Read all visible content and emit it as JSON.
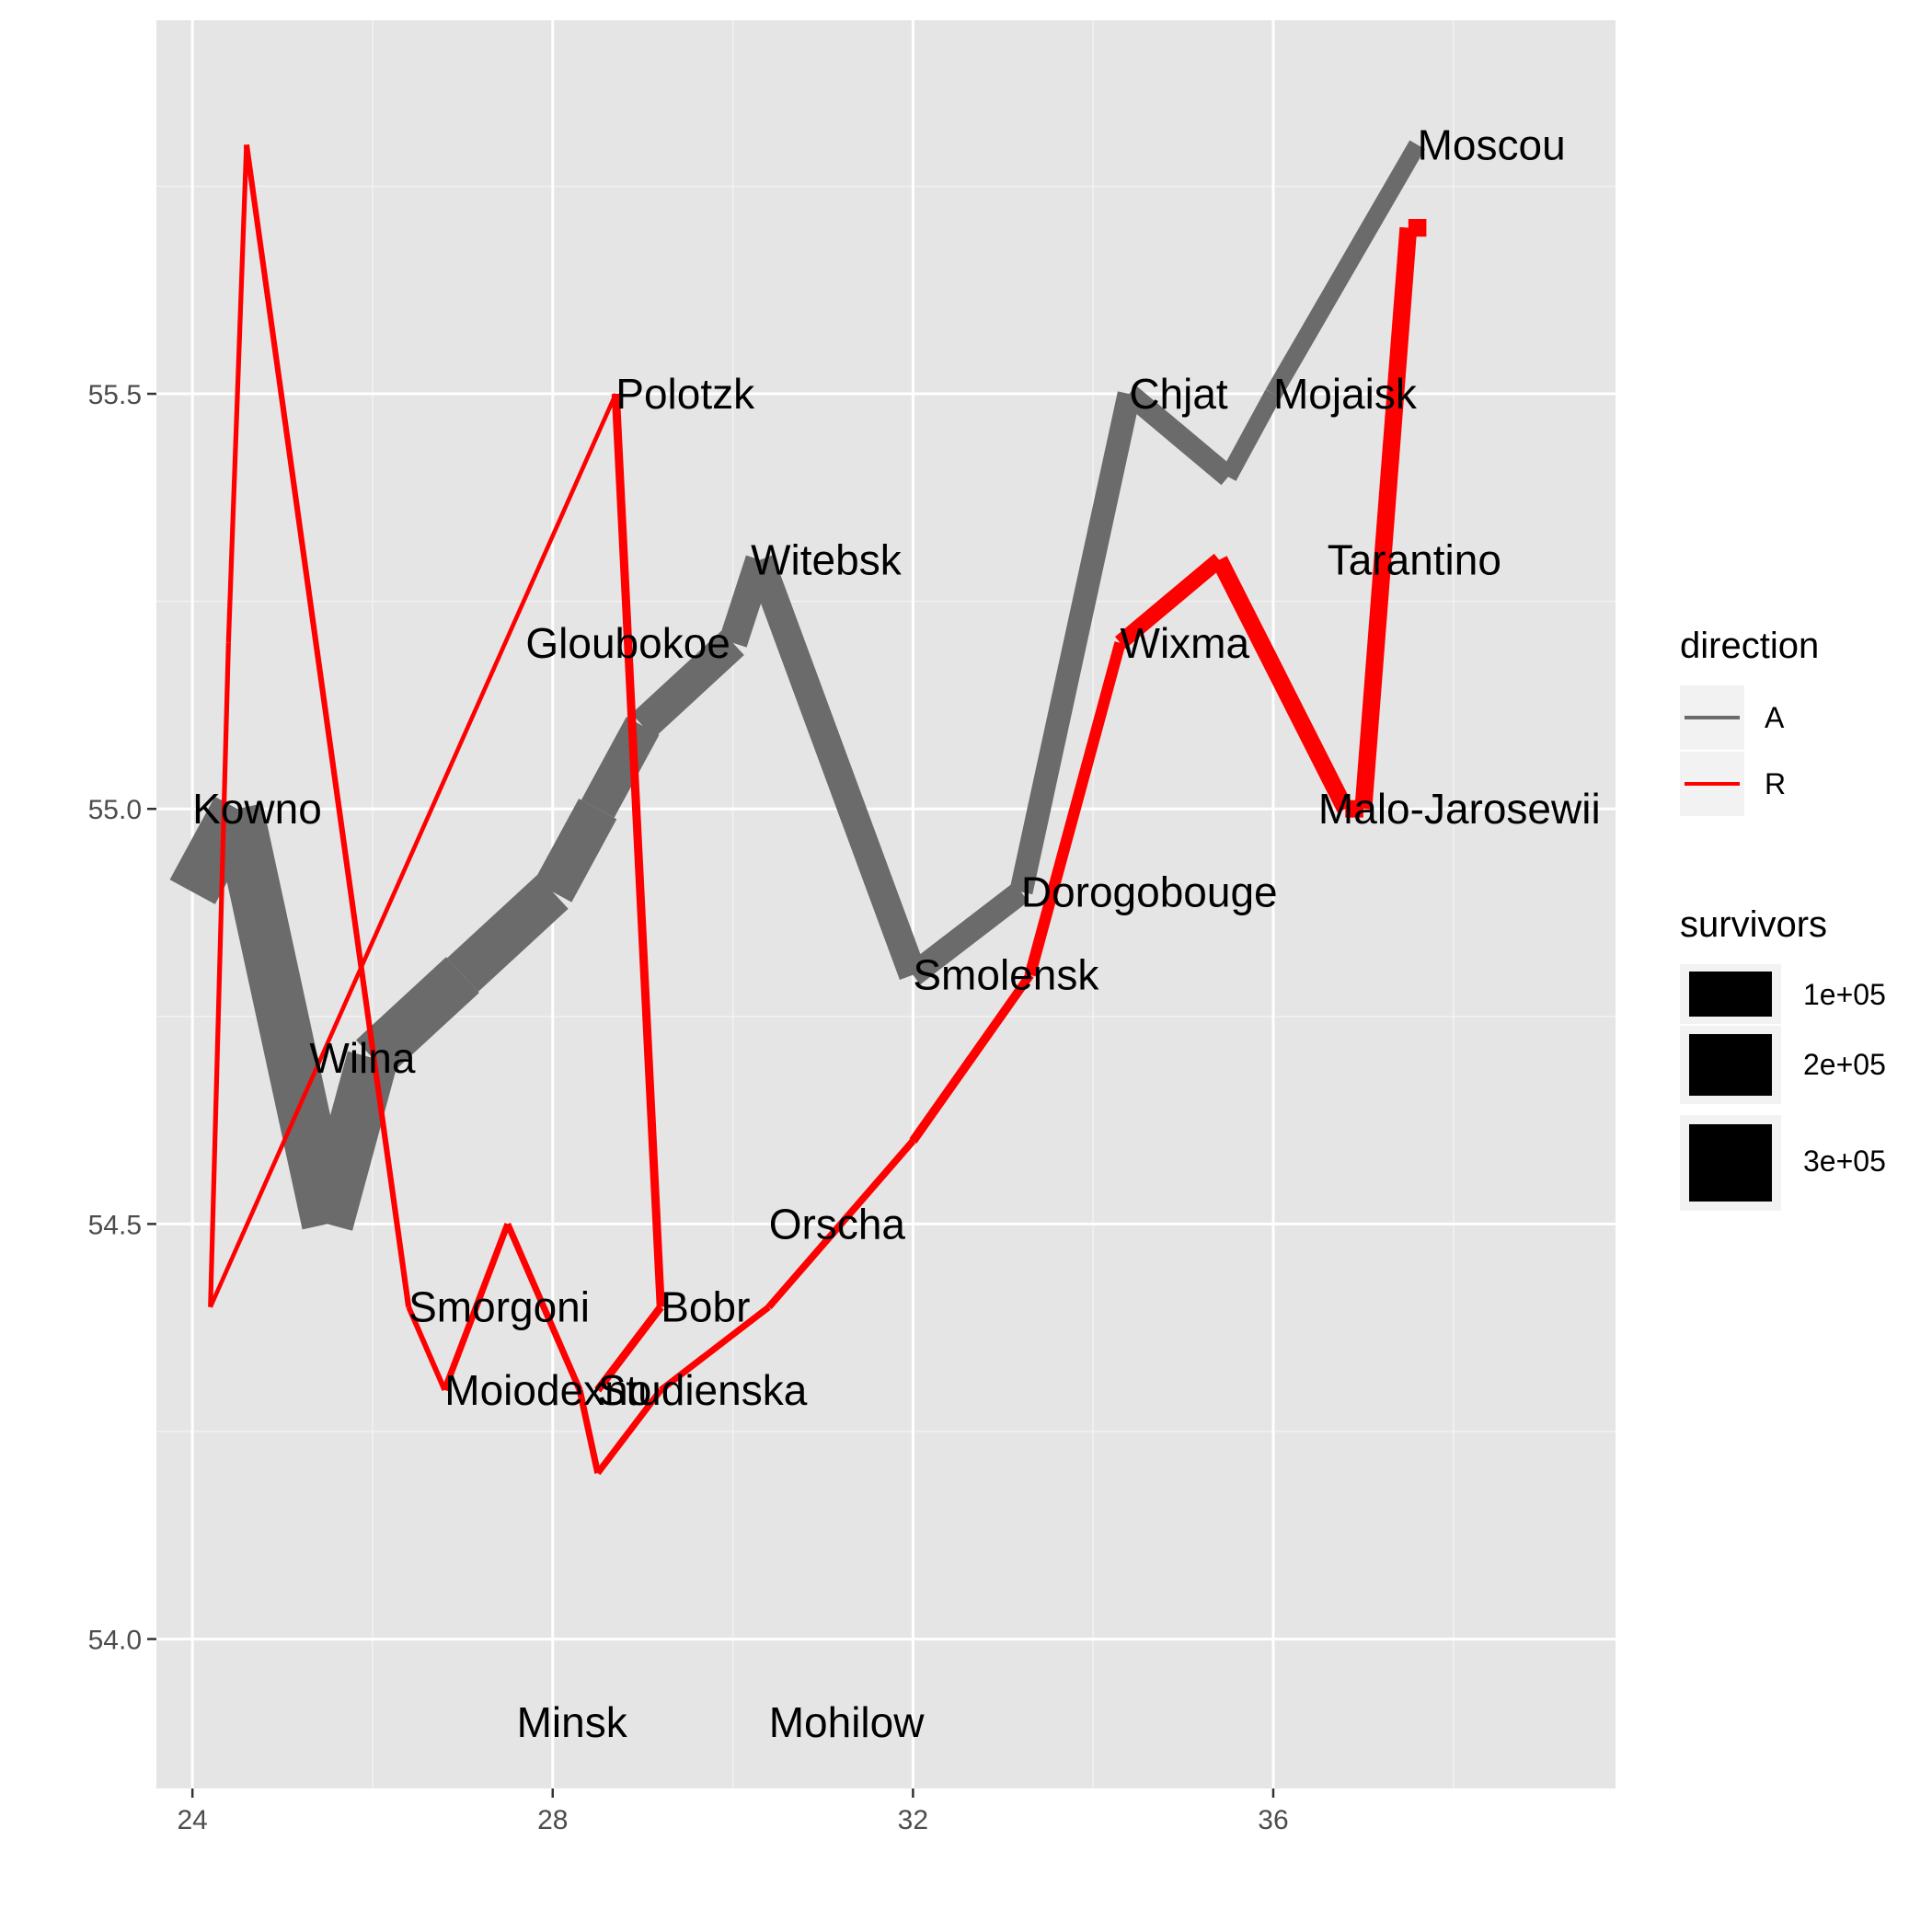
{
  "chart_data": {
    "type": "line",
    "title": "",
    "xlabel": "",
    "ylabel": "",
    "xlim": [
      23.6,
      39.8
    ],
    "ylim": [
      53.82,
      55.95
    ],
    "x_ticks": [
      24,
      28,
      32,
      36
    ],
    "y_ticks": [
      54.0,
      54.5,
      55.0,
      55.5
    ],
    "x_tick_labels": [
      "24",
      "28",
      "32",
      "36"
    ],
    "y_tick_labels": [
      "54.0",
      "54.5",
      "55.0",
      "55.5"
    ],
    "grid": true,
    "panel_background": "#e5e5e5",
    "legend_placement": "right",
    "direction_legend": {
      "title": "direction",
      "entries": [
        {
          "label": "A",
          "color": "#6b6b6b"
        },
        {
          "label": "R",
          "color": "#ff0000"
        }
      ]
    },
    "size_legend": {
      "title": "survivors",
      "entries": [
        {
          "label": "1e+05",
          "value": 100000
        },
        {
          "label": "2e+05",
          "value": 200000
        },
        {
          "label": "3e+05",
          "value": 300000
        }
      ]
    },
    "series": [
      {
        "direction": "A",
        "color": "#6b6b6b",
        "points": [
          {
            "lon": 24.0,
            "lat": 54.9,
            "survivors": 340000
          },
          {
            "lon": 24.5,
            "lat": 55.0,
            "survivors": 340000
          },
          {
            "lon": 25.5,
            "lat": 54.5,
            "survivors": 340000
          },
          {
            "lon": 26.0,
            "lat": 54.7,
            "survivors": 320000
          },
          {
            "lon": 27.0,
            "lat": 54.8,
            "survivors": 300000
          },
          {
            "lon": 28.0,
            "lat": 54.9,
            "survivors": 280000
          },
          {
            "lon": 28.5,
            "lat": 55.0,
            "survivors": 240000
          },
          {
            "lon": 29.0,
            "lat": 55.1,
            "survivors": 210000
          },
          {
            "lon": 30.0,
            "lat": 55.2,
            "survivors": 180000
          },
          {
            "lon": 30.3,
            "lat": 55.3,
            "survivors": 175000
          },
          {
            "lon": 32.0,
            "lat": 54.8,
            "survivors": 145000
          },
          {
            "lon": 33.2,
            "lat": 54.9,
            "survivors": 140000
          },
          {
            "lon": 34.4,
            "lat": 55.5,
            "survivors": 127100
          },
          {
            "lon": 35.5,
            "lat": 55.4,
            "survivors": 100000
          },
          {
            "lon": 36.0,
            "lat": 55.5,
            "survivors": 100000
          },
          {
            "lon": 37.6,
            "lat": 55.8,
            "survivors": 100000
          }
        ]
      },
      {
        "direction": "R",
        "color": "#ff0000",
        "points": [
          {
            "lon": 37.7,
            "lat": 55.7,
            "survivors": 100000
          },
          {
            "lon": 37.5,
            "lat": 55.7,
            "survivors": 98000
          },
          {
            "lon": 37.0,
            "lat": 55.0,
            "survivors": 97000
          },
          {
            "lon": 36.8,
            "lat": 55.0,
            "survivors": 96000
          },
          {
            "lon": 35.4,
            "lat": 55.3,
            "survivors": 87000
          },
          {
            "lon": 34.3,
            "lat": 55.2,
            "survivors": 55000
          },
          {
            "lon": 33.3,
            "lat": 54.8,
            "survivors": 37000
          },
          {
            "lon": 32.0,
            "lat": 54.6,
            "survivors": 24000
          },
          {
            "lon": 30.4,
            "lat": 54.4,
            "survivors": 20000
          },
          {
            "lon": 29.2,
            "lat": 54.3,
            "survivors": 20000
          },
          {
            "lon": 28.5,
            "lat": 54.2,
            "survivors": 20000
          },
          {
            "lon": 28.3,
            "lat": 54.3,
            "survivors": 20000
          },
          {
            "lon": 27.5,
            "lat": 54.5,
            "survivors": 20000
          },
          {
            "lon": 26.8,
            "lat": 54.3,
            "survivors": 12000
          },
          {
            "lon": 26.4,
            "lat": 54.4,
            "survivors": 14000
          },
          {
            "lon": 24.6,
            "lat": 55.8,
            "survivors": 8000
          },
          {
            "lon": 24.4,
            "lat": 55.2,
            "survivors": 8000
          },
          {
            "lon": 24.2,
            "lat": 54.4,
            "survivors": 4000
          },
          {
            "lon": 28.7,
            "lat": 55.5,
            "survivors": 33000
          },
          {
            "lon": 29.2,
            "lat": 54.4,
            "survivors": 30000
          },
          {
            "lon": 28.5,
            "lat": 54.3,
            "survivors": 28000
          }
        ]
      }
    ],
    "cities": [
      {
        "name": "Kowno",
        "lon": 24.0,
        "lat": 55.0
      },
      {
        "name": "Wilna",
        "lon": 25.3,
        "lat": 54.7
      },
      {
        "name": "Smorgoni",
        "lon": 26.4,
        "lat": 54.4
      },
      {
        "name": "Moiodexno",
        "lon": 26.8,
        "lat": 54.3
      },
      {
        "name": "Gloubokoe",
        "lon": 27.7,
        "lat": 55.2
      },
      {
        "name": "Minsk",
        "lon": 27.6,
        "lat": 53.9
      },
      {
        "name": "Studienska",
        "lon": 28.5,
        "lat": 54.3
      },
      {
        "name": "Polotzk",
        "lon": 28.7,
        "lat": 55.5
      },
      {
        "name": "Bobr",
        "lon": 29.2,
        "lat": 54.4
      },
      {
        "name": "Witebsk",
        "lon": 30.2,
        "lat": 55.3
      },
      {
        "name": "Orscha",
        "lon": 30.4,
        "lat": 54.5
      },
      {
        "name": "Mohilow",
        "lon": 30.4,
        "lat": 53.9
      },
      {
        "name": "Smolensk",
        "lon": 32.0,
        "lat": 54.8
      },
      {
        "name": "Dorogobouge",
        "lon": 33.2,
        "lat": 54.9
      },
      {
        "name": "Wixma",
        "lon": 34.3,
        "lat": 55.2
      },
      {
        "name": "Chjat",
        "lon": 34.4,
        "lat": 55.5
      },
      {
        "name": "Mojaisk",
        "lon": 36.0,
        "lat": 55.5
      },
      {
        "name": "Moscou",
        "lon": 37.6,
        "lat": 55.8
      },
      {
        "name": "Tarantino",
        "lon": 36.6,
        "lat": 55.3
      },
      {
        "name": "Malo-Jarosewii",
        "lon": 36.5,
        "lat": 55.0
      }
    ]
  }
}
